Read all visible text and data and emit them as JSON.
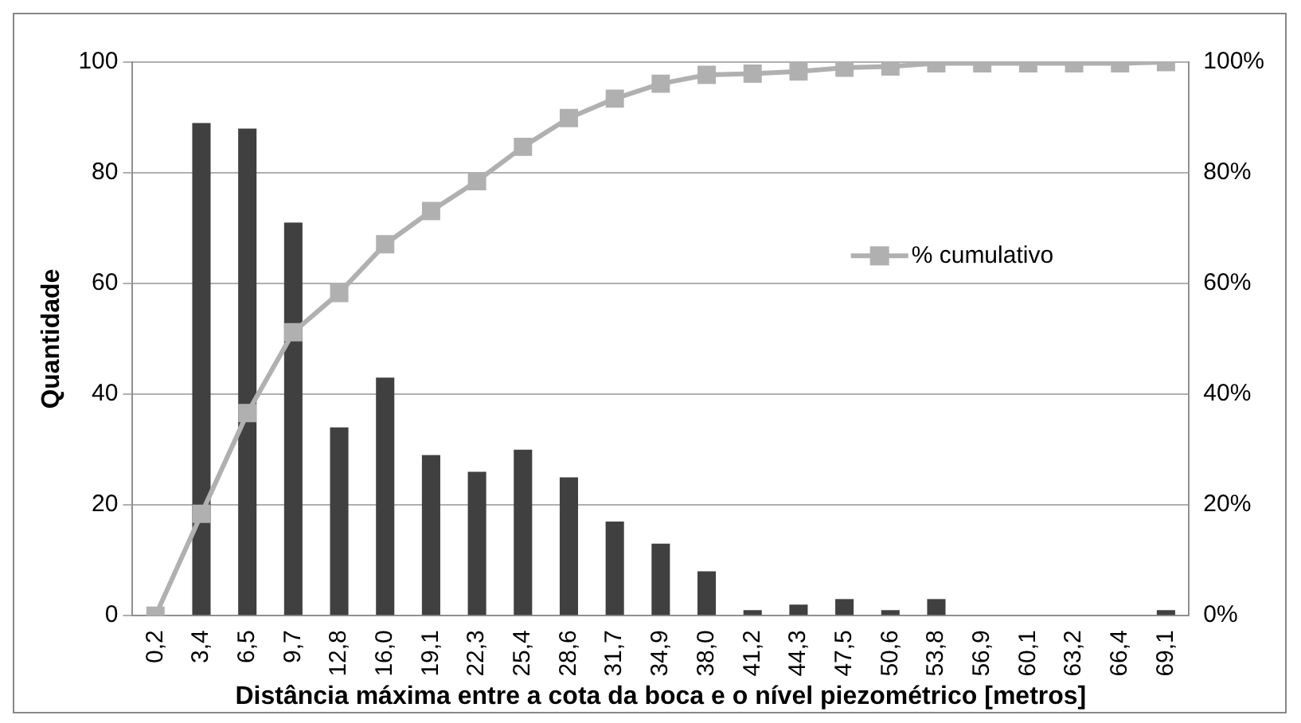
{
  "chart_data": {
    "type": "bar",
    "xlabel": "Distância máxima entre a cota da boca e o nível piezométrico [metros]",
    "ylabel": "Quantidade",
    "categories": [
      "0,2",
      "3,4",
      "6,5",
      "9,7",
      "12,8",
      "16,0",
      "19,1",
      "22,3",
      "25,4",
      "28,6",
      "31,7",
      "34,9",
      "38,0",
      "41,2",
      "44,3",
      "47,5",
      "50,6",
      "53,8",
      "56,9",
      "60,1",
      "63,2",
      "66,4",
      "69,1"
    ],
    "series": [
      {
        "color": "#404040",
        "values": [
          0,
          89,
          88,
          71,
          34,
          43,
          29,
          26,
          30,
          25,
          17,
          13,
          8,
          1,
          2,
          3,
          1,
          3,
          0,
          0,
          0,
          0,
          1
        ]
      },
      {
        "type": "line",
        "name": "% cumulativo",
        "color": "#b0b0b0",
        "axis": "y2",
        "marker": "square",
        "values": [
          0,
          18.4,
          36.6,
          51.2,
          58.3,
          67.1,
          73.1,
          78.5,
          84.7,
          89.9,
          93.4,
          96.1,
          97.7,
          97.9,
          98.3,
          99.0,
          99.2,
          99.8,
          99.8,
          99.8,
          99.8,
          99.8,
          100
        ]
      }
    ],
    "ylim": [
      0,
      100
    ],
    "yticks": [
      0,
      20,
      40,
      60,
      80,
      100
    ],
    "y2lim": [
      0,
      100
    ],
    "y2ticks": [
      {
        "value": 0,
        "label": "0%"
      },
      {
        "value": 20,
        "label": "20%"
      },
      {
        "value": 40,
        "label": "40%"
      },
      {
        "value": 60,
        "label": "60%"
      },
      {
        "value": 80,
        "label": "80%"
      },
      {
        "value": 100,
        "label": "100%"
      }
    ],
    "grid": "y",
    "legend": "right"
  }
}
